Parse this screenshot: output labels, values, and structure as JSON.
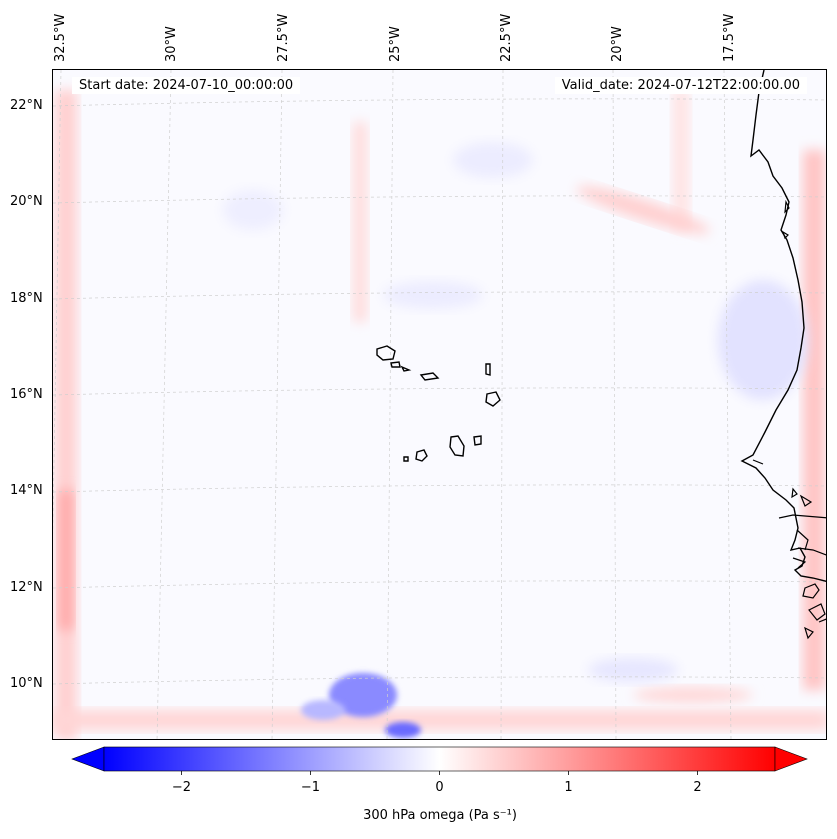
{
  "map": {
    "start_date": "Start date: 2024-07-10_00:00:00",
    "valid_date": "Valid_date: 2024-07-12T22:00:00.00",
    "lon_labels": [
      "32.5°W",
      "30°W",
      "27.5°W",
      "25°W",
      "22.5°W",
      "20°W",
      "17.5°W"
    ],
    "lat_labels": [
      "22°N",
      "20°N",
      "18°N",
      "16°N",
      "14°N",
      "12°N",
      "10°N"
    ],
    "islands": [
      "Santo Antão",
      "São Vicente",
      "São Nicolau",
      "Sal",
      "Boa Vista",
      "Santiago",
      "Fogo",
      "Brava",
      "Maio"
    ],
    "coastline": "West African coast (Mauritania, Senegal, Gambia, Guinea-Bissau)"
  },
  "colorbar": {
    "title": "300 hPa omega (Pa s⁻¹)",
    "ticks": [
      "−2",
      "−1",
      "0",
      "1",
      "2"
    ],
    "tick_values": [
      -2,
      -1,
      0,
      1,
      2
    ],
    "range": [
      -2.6,
      2.6
    ],
    "colormap": "bwr",
    "min_color": "#0000ff",
    "mid_color": "#ffffff",
    "max_color": "#ff0000"
  }
}
